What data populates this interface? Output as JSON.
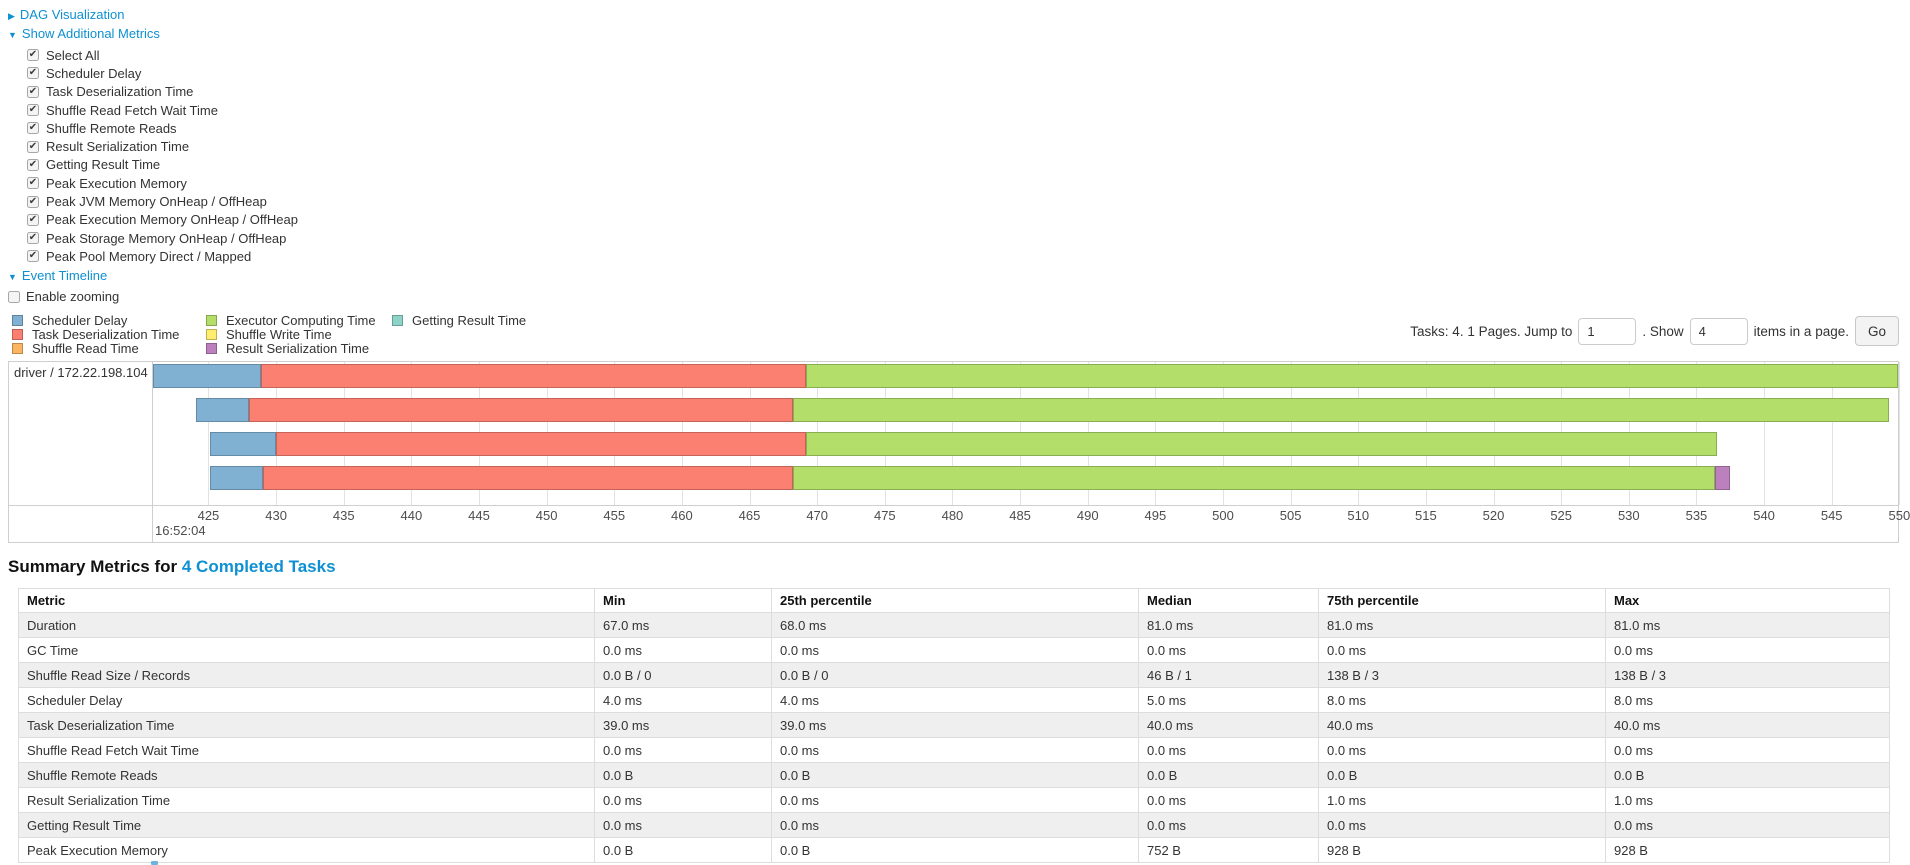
{
  "sections": {
    "dag": {
      "label": "DAG Visualization"
    },
    "metrics": {
      "label": "Show Additional Metrics"
    },
    "timeline": {
      "label": "Event Timeline"
    },
    "enable_zooming": {
      "label": "Enable zooming",
      "checked": false
    }
  },
  "metrics": {
    "items": [
      {
        "label": "Select All",
        "checked": true
      },
      {
        "label": "Scheduler Delay",
        "checked": true
      },
      {
        "label": "Task Deserialization Time",
        "checked": true
      },
      {
        "label": "Shuffle Read Fetch Wait Time",
        "checked": true
      },
      {
        "label": "Shuffle Remote Reads",
        "checked": true
      },
      {
        "label": "Result Serialization Time",
        "checked": true
      },
      {
        "label": "Getting Result Time",
        "checked": true
      },
      {
        "label": "Peak Execution Memory",
        "checked": true
      },
      {
        "label": "Peak JVM Memory OnHeap / OffHeap",
        "checked": true
      },
      {
        "label": "Peak Execution Memory OnHeap / OffHeap",
        "checked": true
      },
      {
        "label": "Peak Storage Memory OnHeap / OffHeap",
        "checked": true
      },
      {
        "label": "Peak Pool Memory Direct / Mapped",
        "checked": true
      }
    ]
  },
  "legend": {
    "columns": [
      {
        "items": [
          {
            "label": "Scheduler Delay",
            "color": "#80B1D3"
          },
          {
            "label": "Task Deserialization Time",
            "color": "#FB8072"
          },
          {
            "label": "Shuffle Read Time",
            "color": "#FDB462"
          }
        ]
      },
      {
        "items": [
          {
            "label": "Executor Computing Time",
            "color": "#B3DE69"
          },
          {
            "label": "Shuffle Write Time",
            "color": "#FFED6F"
          },
          {
            "label": "Result Serialization Time",
            "color": "#BC80BD"
          }
        ]
      },
      {
        "items": [
          {
            "label": "Getting Result Time",
            "color": "#8DD3C7"
          }
        ]
      }
    ]
  },
  "pagination": {
    "tasks_text": "Tasks: 4. 1 Pages. Jump to",
    "jump_value": "1",
    "between_text": ". Show",
    "show_value": "4",
    "after_text": "items in a page.",
    "go_label": "Go"
  },
  "chart_data": {
    "type": "gantt-timeline",
    "group_label": "driver / 172.22.198.104",
    "x_axis": {
      "min": 420.9,
      "max": 549.9,
      "ticks": [
        425,
        430,
        435,
        440,
        445,
        450,
        455,
        460,
        465,
        470,
        475,
        480,
        485,
        490,
        495,
        500,
        505,
        510,
        515,
        520,
        525,
        530,
        535,
        540,
        545,
        550
      ],
      "major_label": "16:52:04",
      "grid": true
    },
    "series": [
      {
        "name": "Scheduler Delay",
        "color": "#80B1D3"
      },
      {
        "name": "Task Deserialization Time",
        "color": "#FB8072"
      },
      {
        "name": "Shuffle Read Time",
        "color": "#FDB462"
      },
      {
        "name": "Executor Computing Time",
        "color": "#B3DE69"
      },
      {
        "name": "Shuffle Write Time",
        "color": "#FFED6F"
      },
      {
        "name": "Result Serialization Time",
        "color": "#BC80BD"
      },
      {
        "name": "Getting Result Time",
        "color": "#8DD3C7"
      }
    ],
    "tasks": [
      {
        "segments": [
          {
            "series": "Scheduler Delay",
            "start": 420.9,
            "end": 428.9
          },
          {
            "series": "Task Deserialization Time",
            "start": 428.9,
            "end": 469.2
          },
          {
            "series": "Executor Computing Time",
            "start": 469.2,
            "end": 549.9
          }
        ]
      },
      {
        "segments": [
          {
            "series": "Scheduler Delay",
            "start": 424.1,
            "end": 428.0
          },
          {
            "series": "Task Deserialization Time",
            "start": 428.0,
            "end": 468.2
          },
          {
            "series": "Executor Computing Time",
            "start": 468.2,
            "end": 549.2
          }
        ]
      },
      {
        "segments": [
          {
            "series": "Scheduler Delay",
            "start": 425.1,
            "end": 430.0
          },
          {
            "series": "Task Deserialization Time",
            "start": 430.0,
            "end": 469.2
          },
          {
            "series": "Executor Computing Time",
            "start": 469.2,
            "end": 536.5
          }
        ]
      },
      {
        "segments": [
          {
            "series": "Scheduler Delay",
            "start": 425.1,
            "end": 429.0
          },
          {
            "series": "Task Deserialization Time",
            "start": 429.0,
            "end": 468.2
          },
          {
            "series": "Executor Computing Time",
            "start": 468.2,
            "end": 536.4
          },
          {
            "series": "Result Serialization Time",
            "start": 536.4,
            "end": 537.5
          }
        ]
      }
    ]
  },
  "summary": {
    "title_prefix": "Summary Metrics for",
    "title_link": "4 Completed Tasks",
    "columns": [
      "Metric",
      "Min",
      "25th percentile",
      "Median",
      "75th percentile",
      "Max"
    ],
    "rows": [
      {
        "metric": "Duration",
        "values": [
          "67.0 ms",
          "68.0 ms",
          "81.0 ms",
          "81.0 ms",
          "81.0 ms"
        ]
      },
      {
        "metric": "GC Time",
        "values": [
          "0.0 ms",
          "0.0 ms",
          "0.0 ms",
          "0.0 ms",
          "0.0 ms"
        ]
      },
      {
        "metric": "Shuffle Read Size / Records",
        "values": [
          "0.0 B / 0",
          "0.0 B / 0",
          "46 B / 1",
          "138 B / 3",
          "138 B / 3"
        ]
      },
      {
        "metric": "Scheduler Delay",
        "values": [
          "4.0 ms",
          "4.0 ms",
          "5.0 ms",
          "8.0 ms",
          "8.0 ms"
        ]
      },
      {
        "metric": "Task Deserialization Time",
        "values": [
          "39.0 ms",
          "39.0 ms",
          "40.0 ms",
          "40.0 ms",
          "40.0 ms"
        ]
      },
      {
        "metric": "Shuffle Read Fetch Wait Time",
        "values": [
          "0.0 ms",
          "0.0 ms",
          "0.0 ms",
          "0.0 ms",
          "0.0 ms"
        ]
      },
      {
        "metric": "Shuffle Remote Reads",
        "values": [
          "0.0 B",
          "0.0 B",
          "0.0 B",
          "0.0 B",
          "0.0 B"
        ]
      },
      {
        "metric": "Result Serialization Time",
        "values": [
          "0.0 ms",
          "0.0 ms",
          "0.0 ms",
          "1.0 ms",
          "1.0 ms"
        ]
      },
      {
        "metric": "Getting Result Time",
        "values": [
          "0.0 ms",
          "0.0 ms",
          "0.0 ms",
          "0.0 ms",
          "0.0 ms"
        ]
      },
      {
        "metric": "Peak Execution Memory",
        "values": [
          "0.0 B",
          "0.0 B",
          "752 B",
          "928 B",
          "928 B"
        ]
      }
    ]
  }
}
